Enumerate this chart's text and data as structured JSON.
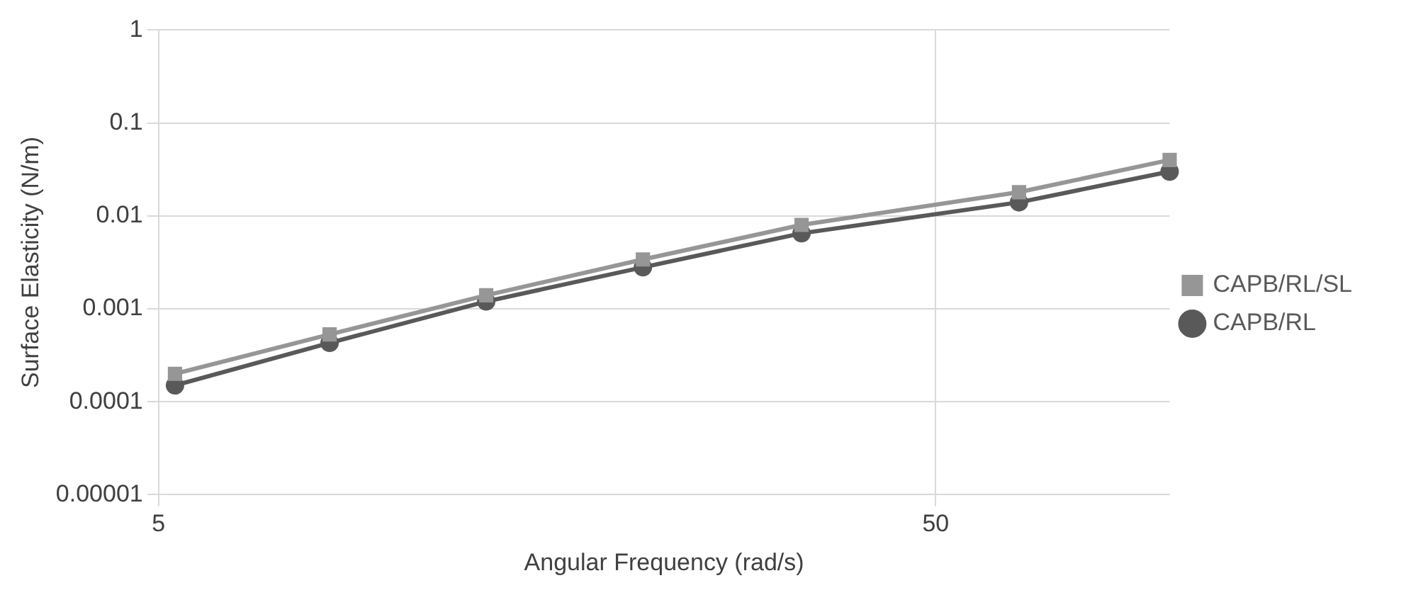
{
  "chart_data": {
    "type": "line",
    "xlabel": "Angular Frequency (rad/s)",
    "ylabel": "Surface Elasticity (N/m)",
    "log": "xy",
    "grid": true,
    "legend": "right",
    "line_style": "solid",
    "xlim": [
      5,
      100
    ],
    "xticks": [
      5,
      50
    ],
    "ylim": [
      1e-05,
      1
    ],
    "yticks": [
      {
        "value": 1e-05,
        "label": "0.00001"
      },
      0.0001,
      0.001,
      0.01,
      0.1,
      1
    ],
    "x": [
      5.25,
      8.3,
      13.2,
      21,
      33.6,
      64,
      100
    ],
    "series": [
      {
        "name": "CAPB/RL",
        "color": "#595959",
        "marker": "circle",
        "values": [
          0.00015,
          0.00043,
          0.0012,
          0.0028,
          0.0065,
          0.014,
          0.03
        ]
      },
      {
        "name": "CAPB/RL/SL",
        "color": "#969696",
        "marker": "square",
        "values": [
          0.0002,
          0.00053,
          0.0014,
          0.0034,
          0.008,
          0.018,
          0.04
        ]
      }
    ]
  }
}
